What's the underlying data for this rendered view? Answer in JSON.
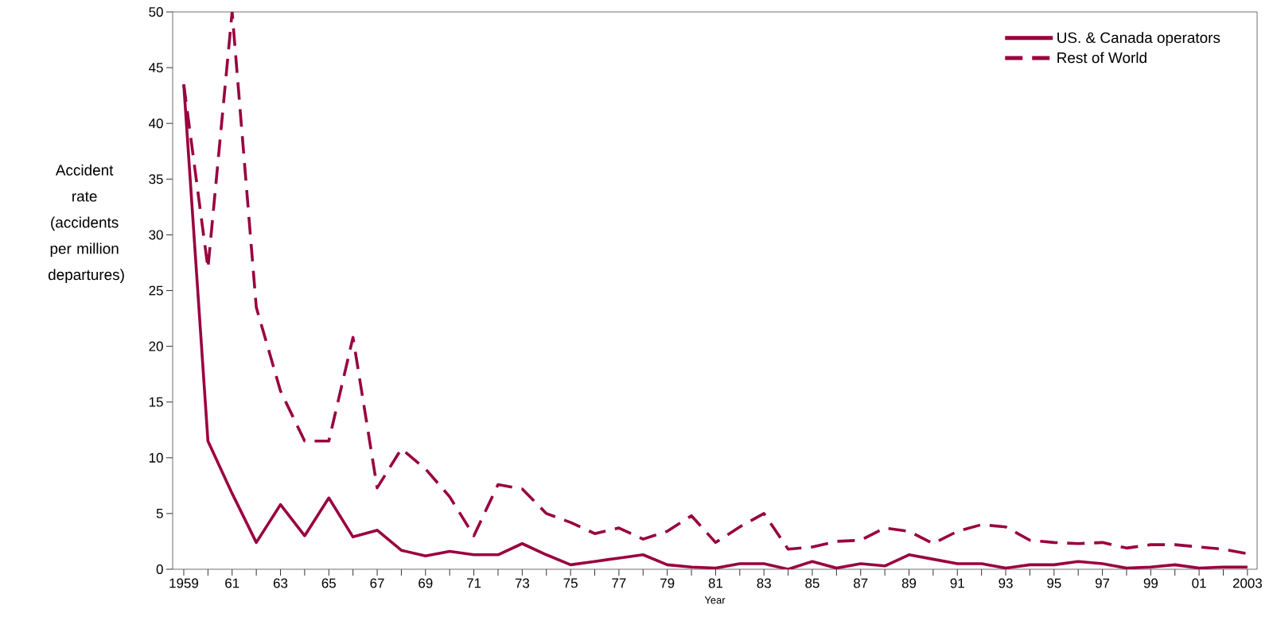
{
  "chart_data": {
    "type": "line",
    "xlabel": "Year",
    "ylabel": "Accident rate (accidents per million departures)",
    "categories": [
      "1959",
      null,
      "61",
      null,
      "63",
      null,
      "65",
      null,
      "67",
      null,
      "69",
      null,
      "71",
      null,
      "73",
      null,
      "75",
      null,
      "77",
      null,
      "79",
      null,
      "81",
      null,
      "83",
      null,
      "85",
      null,
      "87",
      null,
      "89",
      null,
      "91",
      null,
      "93",
      null,
      "95",
      null,
      "97",
      null,
      "99",
      null,
      "01",
      null,
      "2003"
    ],
    "series": [
      {
        "name": "US. & Canada operators",
        "color": "#99003f",
        "line_style": "solid",
        "values": [
          43.5,
          11.5,
          6.8,
          2.4,
          5.8,
          3.0,
          6.4,
          2.9,
          3.5,
          1.7,
          1.2,
          1.6,
          1.3,
          1.3,
          2.3,
          1.3,
          0.4,
          0.7,
          1.0,
          1.3,
          0.4,
          0.2,
          0.1,
          0.5,
          0.5,
          0.0,
          0.7,
          0.1,
          0.5,
          0.3,
          1.3,
          0.9,
          0.5,
          0.5,
          0.1,
          0.4,
          0.4,
          0.7,
          0.5,
          0.1,
          0.2,
          0.4,
          0.1,
          0.2,
          0.2
        ]
      },
      {
        "name": "Rest of World",
        "color": "#99003f",
        "line_style": "dashed",
        "values": [
          43.5,
          27,
          50,
          23.5,
          16,
          11.5,
          11.5,
          20.8,
          7.3,
          10.8,
          9.0,
          6.5,
          3.0,
          7.6,
          7.2,
          5.0,
          4.2,
          3.2,
          3.7,
          2.7,
          3.4,
          4.8,
          2.4,
          3.8,
          5.0,
          1.8,
          2.0,
          2.5,
          2.6,
          3.7,
          3.4,
          2.3,
          3.4,
          4.0,
          3.8,
          2.6,
          2.4,
          2.3,
          2.4,
          1.9,
          2.2,
          2.2,
          2.0,
          1.8,
          1.4
        ]
      }
    ],
    "ylim": [
      0,
      50
    ],
    "yticks": [
      0,
      5,
      10,
      15,
      20,
      25,
      30,
      35,
      40,
      45,
      50
    ],
    "legend": "top right",
    "grid": false
  }
}
